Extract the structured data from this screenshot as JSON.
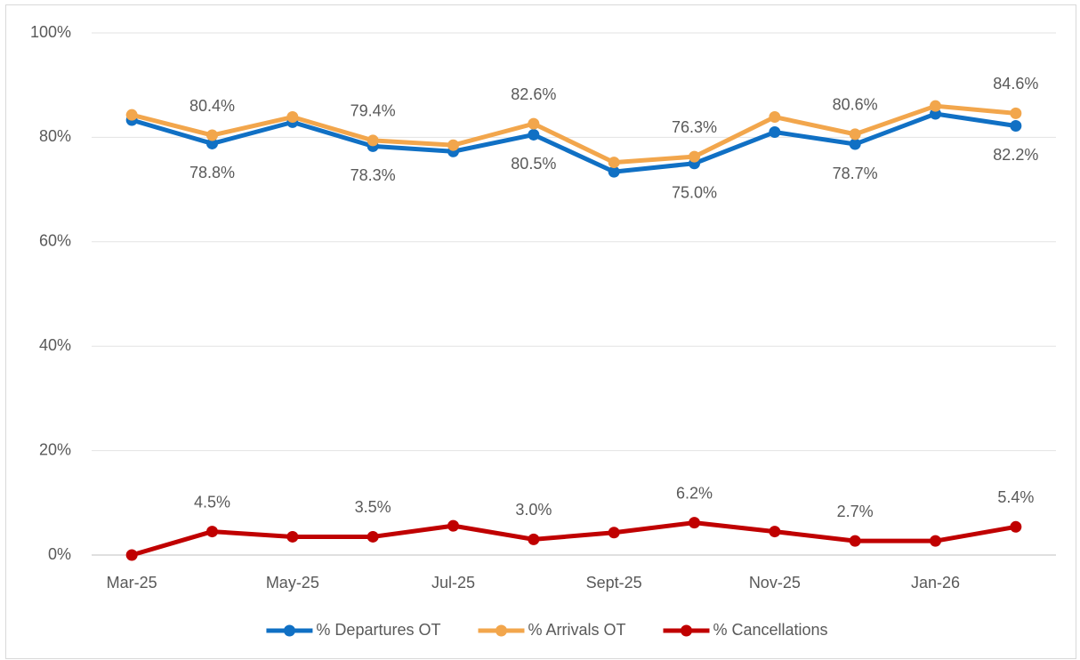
{
  "chart_data": {
    "type": "line",
    "categories": [
      "Mar-25",
      null,
      "May-25",
      null,
      "Jul-25",
      null,
      "Sept-25",
      null,
      "Nov-25",
      null,
      "Jan-26",
      null
    ],
    "series": [
      {
        "name": "% Departures OT",
        "color": "#1070c4",
        "values": [
          83.3,
          78.8,
          82.9,
          78.3,
          77.3,
          80.5,
          73.4,
          75.0,
          81.0,
          78.7,
          84.5,
          82.2
        ],
        "value_labels": [
          null,
          "78.8%",
          null,
          "78.3%",
          null,
          "80.5%",
          null,
          "75.0%",
          null,
          "78.7%",
          null,
          "82.2%"
        ]
      },
      {
        "name": "% Arrivals OT",
        "color": "#f2a64c",
        "values": [
          84.3,
          80.4,
          83.9,
          79.4,
          78.5,
          82.6,
          75.2,
          76.3,
          83.9,
          80.6,
          86.0,
          84.6
        ],
        "value_labels": [
          null,
          "80.4%",
          null,
          "79.4%",
          null,
          "82.6%",
          null,
          "76.3%",
          null,
          "80.6%",
          null,
          "84.6%"
        ]
      },
      {
        "name": "% Cancellations",
        "color": "#c00000",
        "values": [
          0,
          4.5,
          3.5,
          3.5,
          5.6,
          3.0,
          4.3,
          6.2,
          4.5,
          2.7,
          2.7,
          5.4
        ],
        "value_labels": [
          null,
          "4.5%",
          null,
          "3.5%",
          null,
          "3.0%",
          null,
          "6.2%",
          null,
          "2.7%",
          null,
          "5.4%"
        ]
      }
    ],
    "ylim": [
      0,
      100
    ],
    "yticks": [
      {
        "value": 0,
        "label": "0%"
      },
      {
        "value": 20,
        "label": "20%"
      },
      {
        "value": 40,
        "label": "40%"
      },
      {
        "value": 60,
        "label": "60%"
      },
      {
        "value": 80,
        "label": "80%"
      },
      {
        "value": 100,
        "label": "100%"
      }
    ],
    "grid": true,
    "legend": "bottom"
  }
}
